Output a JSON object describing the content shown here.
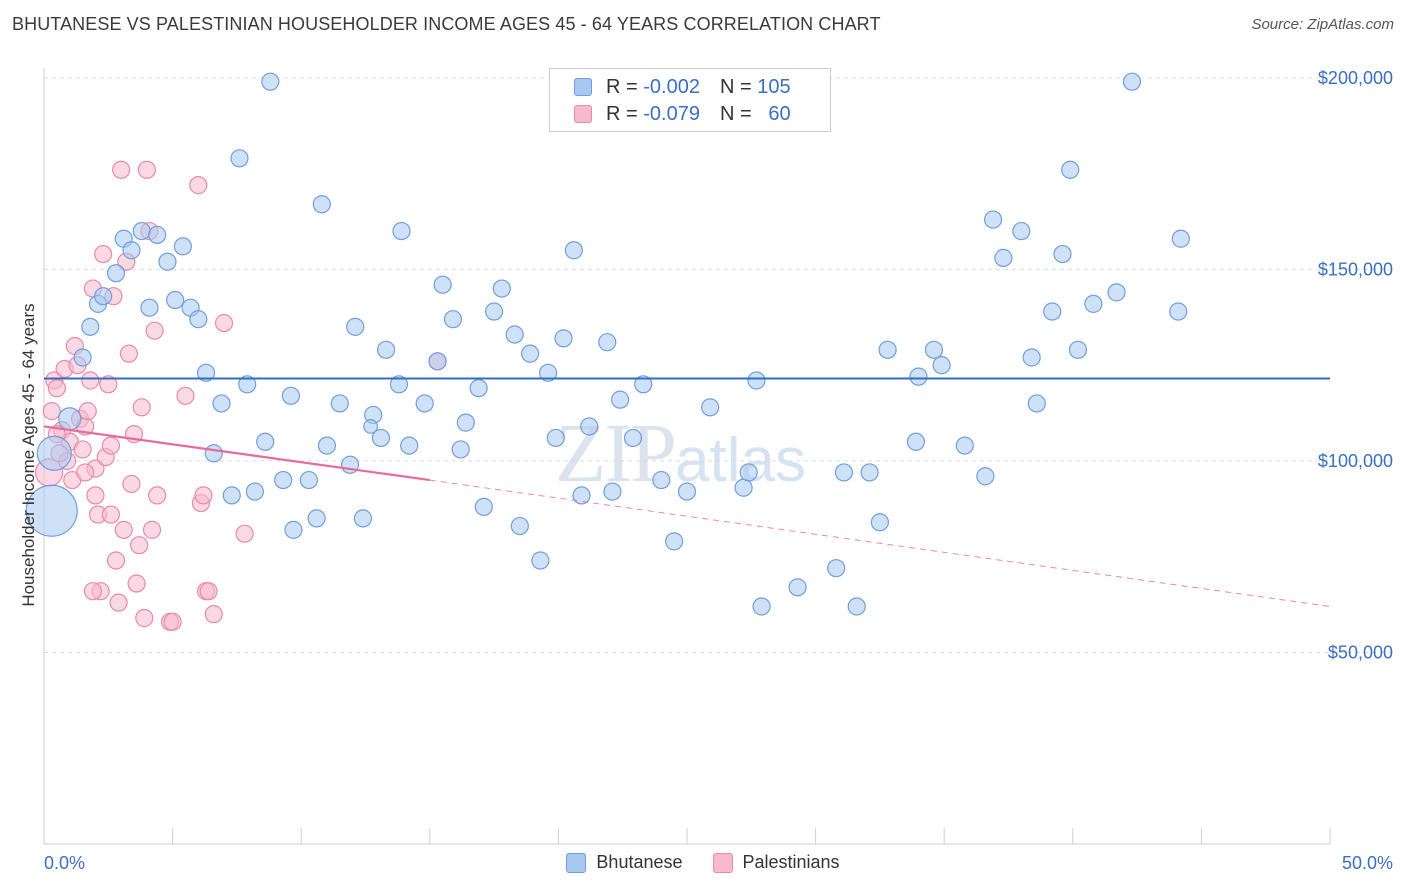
{
  "title": "BHUTANESE VS PALESTINIAN HOUSEHOLDER INCOME AGES 45 - 64 YEARS CORRELATION CHART",
  "source": "Source: ZipAtlas.com",
  "watermark": {
    "zip": "ZIP",
    "atlas": "atlas"
  },
  "legend": {
    "rows": [
      {
        "r_label": "R =",
        "r_value": "-0.002",
        "n_label": "N =",
        "n_value": "105",
        "color": "#a8c8f0",
        "stroke": "#6f9fdc"
      },
      {
        "r_label": "R =",
        "r_value": "-0.079",
        "n_label": "N =",
        "n_value": "60",
        "color": "#f7b9cd",
        "stroke": "#e88aa9"
      }
    ]
  },
  "bottom_legend": [
    {
      "label": "Bhutanese",
      "color": "#a8c8f0",
      "stroke": "#6f9fdc"
    },
    {
      "label": "Palestinians",
      "color": "#f7b9cd",
      "stroke": "#e88aa9"
    }
  ],
  "chart_data": {
    "type": "scatter",
    "title": "BHUTANESE VS PALESTINIAN HOUSEHOLDER INCOME AGES 45 - 64 YEARS CORRELATION CHART",
    "xlabel": "",
    "ylabel": "Householder Income Ages 45 - 64 years",
    "xlim": [
      0,
      50
    ],
    "ylim": [
      0,
      205000
    ],
    "x_tick_labels": [
      "0.0%",
      "50.0%"
    ],
    "y_ticks": [
      50000,
      100000,
      150000,
      200000
    ],
    "y_tick_labels": [
      "$50,000",
      "$100,000",
      "$150,000",
      "$200,000"
    ],
    "grid": true,
    "legend_position": "top-center",
    "series": [
      {
        "name": "Bhutanese",
        "color": "#a8c8f0",
        "stroke": "#6f9fdc",
        "trend": {
          "x": [
            0,
            50
          ],
          "y": [
            121500,
            121500
          ],
          "color": "#2f6fc3"
        },
        "points": [
          [
            0.3,
            87000,
            3
          ],
          [
            0.4,
            102000,
            2
          ],
          [
            1.0,
            111000,
            1.3
          ],
          [
            1.5,
            127000,
            1
          ],
          [
            1.8,
            135000,
            1
          ],
          [
            2.1,
            141000,
            1
          ],
          [
            2.3,
            143000,
            1
          ],
          [
            2.8,
            149000,
            1
          ],
          [
            3.1,
            158000,
            1
          ],
          [
            3.4,
            155000,
            1
          ],
          [
            3.8,
            160000,
            1
          ],
          [
            4.1,
            140000,
            1
          ],
          [
            4.4,
            159000,
            1
          ],
          [
            4.8,
            152000,
            1
          ],
          [
            5.1,
            142000,
            1
          ],
          [
            5.4,
            156000,
            1
          ],
          [
            5.7,
            140000,
            1
          ],
          [
            6.0,
            137000,
            1
          ],
          [
            6.3,
            123000,
            1
          ],
          [
            6.6,
            102000,
            1
          ],
          [
            6.9,
            115000,
            1
          ],
          [
            7.3,
            91000,
            1
          ],
          [
            7.6,
            179000,
            1
          ],
          [
            7.9,
            120000,
            1
          ],
          [
            8.2,
            92000,
            1
          ],
          [
            8.6,
            105000,
            1
          ],
          [
            8.8,
            199000,
            1
          ],
          [
            9.3,
            95000,
            1
          ],
          [
            9.6,
            117000,
            1
          ],
          [
            9.7,
            82000,
            1
          ],
          [
            10.3,
            95000,
            1
          ],
          [
            10.6,
            85000,
            1
          ],
          [
            10.8,
            167000,
            1
          ],
          [
            11.0,
            104000,
            1
          ],
          [
            11.5,
            115000,
            1
          ],
          [
            11.9,
            99000,
            1
          ],
          [
            12.1,
            135000,
            1
          ],
          [
            12.4,
            85000,
            1
          ],
          [
            12.8,
            112000,
            1
          ],
          [
            13.1,
            106000,
            1
          ],
          [
            13.3,
            129000,
            1
          ],
          [
            13.8,
            120000,
            1
          ],
          [
            13.9,
            160000,
            1
          ],
          [
            14.2,
            104000,
            1
          ],
          [
            14.8,
            115000,
            1
          ],
          [
            15.3,
            126000,
            1
          ],
          [
            15.5,
            146000,
            1
          ],
          [
            15.9,
            137000,
            1
          ],
          [
            16.2,
            103000,
            1
          ],
          [
            16.4,
            110000,
            1
          ],
          [
            16.9,
            119000,
            1
          ],
          [
            17.1,
            88000,
            1
          ],
          [
            17.5,
            139000,
            1
          ],
          [
            17.8,
            145000,
            1
          ],
          [
            18.3,
            133000,
            1
          ],
          [
            18.5,
            83000,
            1
          ],
          [
            18.9,
            128000,
            1
          ],
          [
            19.3,
            74000,
            1
          ],
          [
            19.6,
            123000,
            1
          ],
          [
            19.9,
            106000,
            1
          ],
          [
            20.2,
            132000,
            1
          ],
          [
            20.6,
            155000,
            1
          ],
          [
            20.9,
            91000,
            1
          ],
          [
            21.2,
            109000,
            1
          ],
          [
            21.9,
            131000,
            1
          ],
          [
            22.1,
            92000,
            1
          ],
          [
            22.4,
            116000,
            1
          ],
          [
            22.9,
            106000,
            1
          ],
          [
            23.3,
            120000,
            1
          ],
          [
            24.0,
            95000,
            1
          ],
          [
            24.5,
            79000,
            1
          ],
          [
            25.0,
            92000,
            1
          ],
          [
            25.9,
            114000,
            1
          ],
          [
            27.2,
            93000,
            1
          ],
          [
            27.4,
            97000,
            1
          ],
          [
            27.7,
            121000,
            1
          ],
          [
            27.9,
            62000,
            1
          ],
          [
            29.3,
            67000,
            1
          ],
          [
            30.8,
            72000,
            1
          ],
          [
            31.1,
            97000,
            1
          ],
          [
            31.6,
            62000,
            1
          ],
          [
            32.1,
            97000,
            1
          ],
          [
            32.5,
            84000,
            1
          ],
          [
            32.8,
            129000,
            1
          ],
          [
            33.9,
            105000,
            1
          ],
          [
            34.0,
            122000,
            1
          ],
          [
            34.6,
            129000,
            1
          ],
          [
            34.9,
            125000,
            1
          ],
          [
            35.8,
            104000,
            1
          ],
          [
            36.6,
            96000,
            1
          ],
          [
            36.9,
            163000,
            1
          ],
          [
            37.3,
            153000,
            1
          ],
          [
            38.0,
            160000,
            1
          ],
          [
            38.4,
            127000,
            1
          ],
          [
            38.6,
            115000,
            1
          ],
          [
            39.2,
            139000,
            1
          ],
          [
            39.6,
            154000,
            1
          ],
          [
            39.9,
            176000,
            1
          ],
          [
            40.2,
            129000,
            1
          ],
          [
            40.8,
            141000,
            1
          ],
          [
            41.7,
            144000,
            1
          ],
          [
            42.3,
            199000,
            1
          ],
          [
            44.1,
            139000,
            1
          ],
          [
            44.2,
            158000,
            1
          ],
          [
            12.7,
            109000,
            0.8
          ]
        ]
      },
      {
        "name": "Palestinians",
        "color": "#f7b9cd",
        "stroke": "#e88aa9",
        "trend": {
          "x": [
            0,
            15
          ],
          "y": [
            109000,
            95000
          ],
          "dashed_to": [
            50,
            62000
          ],
          "color": "#e8699a"
        },
        "points": [
          [
            0.2,
            97000,
            1.6
          ],
          [
            0.3,
            113000,
            1
          ],
          [
            0.4,
            121000,
            1
          ],
          [
            0.5,
            119000,
            1
          ],
          [
            0.7,
            108000,
            1
          ],
          [
            0.8,
            124000,
            1
          ],
          [
            0.9,
            100000,
            1
          ],
          [
            1.0,
            105000,
            1
          ],
          [
            1.1,
            95000,
            1
          ],
          [
            1.2,
            130000,
            1
          ],
          [
            1.3,
            125000,
            1
          ],
          [
            1.4,
            111000,
            1
          ],
          [
            1.5,
            103000,
            1
          ],
          [
            1.6,
            109000,
            1
          ],
          [
            1.7,
            113000,
            1
          ],
          [
            1.8,
            121000,
            1
          ],
          [
            1.9,
            145000,
            1
          ],
          [
            2.0,
            98000,
            1
          ],
          [
            2.1,
            86000,
            1
          ],
          [
            2.2,
            66000,
            1
          ],
          [
            2.3,
            154000,
            1
          ],
          [
            2.4,
            101000,
            1
          ],
          [
            2.5,
            120000,
            1
          ],
          [
            2.6,
            104000,
            1
          ],
          [
            2.7,
            143000,
            1
          ],
          [
            2.8,
            74000,
            1
          ],
          [
            2.9,
            63000,
            1
          ],
          [
            3.0,
            176000,
            1
          ],
          [
            3.1,
            82000,
            1
          ],
          [
            3.2,
            152000,
            1
          ],
          [
            3.3,
            128000,
            1
          ],
          [
            3.4,
            94000,
            1
          ],
          [
            3.5,
            107000,
            1
          ],
          [
            3.6,
            68000,
            1
          ],
          [
            3.7,
            78000,
            1
          ],
          [
            3.8,
            114000,
            1
          ],
          [
            3.9,
            59000,
            1
          ],
          [
            4.0,
            176000,
            1
          ],
          [
            4.1,
            160000,
            1
          ],
          [
            4.2,
            82000,
            1
          ],
          [
            4.3,
            134000,
            1
          ],
          [
            4.4,
            91000,
            1
          ],
          [
            4.9,
            58000,
            1
          ],
          [
            5.0,
            58000,
            1
          ],
          [
            5.5,
            117000,
            1
          ],
          [
            6.0,
            172000,
            1
          ],
          [
            6.1,
            89000,
            1
          ],
          [
            6.2,
            91000,
            1
          ],
          [
            6.3,
            66000,
            1
          ],
          [
            6.4,
            66000,
            1
          ],
          [
            6.6,
            60000,
            1
          ],
          [
            7.0,
            136000,
            1
          ],
          [
            7.8,
            81000,
            1
          ],
          [
            2.0,
            91000,
            1
          ],
          [
            1.6,
            97000,
            1
          ],
          [
            0.6,
            102000,
            1
          ],
          [
            15.3,
            126000,
            1
          ],
          [
            1.9,
            66000,
            1
          ],
          [
            0.5,
            107000,
            1
          ],
          [
            2.6,
            86000,
            1
          ]
        ]
      }
    ]
  }
}
